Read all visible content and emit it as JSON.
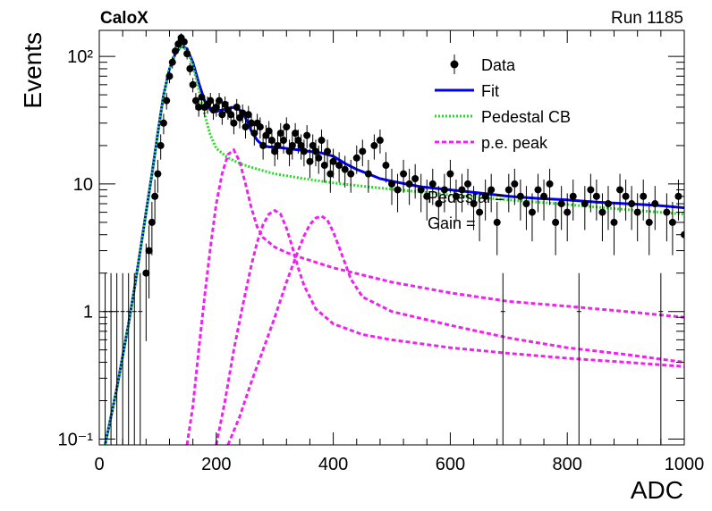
{
  "header": {
    "experiment": "CaloX",
    "run": "Run 1185"
  },
  "chart_data": {
    "type": "scatter",
    "title": "",
    "xlabel": "ADC",
    "ylabel": "Events",
    "xlim": [
      0,
      1000
    ],
    "ylim": [
      0.09,
      160
    ],
    "yscale": "log",
    "x_ticks": [
      0,
      200,
      400,
      600,
      800,
      1000
    ],
    "x_tick_labels": [
      "0",
      "200",
      "400",
      "600",
      "800",
      "1000"
    ],
    "y_ticks": [
      0.1,
      1,
      10,
      100
    ],
    "y_tick_labels": [
      "10⁻¹",
      "1",
      "10",
      "10²"
    ],
    "legend_position": "top-right",
    "legend": [
      {
        "label": "Data",
        "kind": "points",
        "color": "#000000"
      },
      {
        "label": "Fit",
        "kind": "line",
        "color": "#0000ee"
      },
      {
        "label": "Pedestal CB",
        "kind": "dotted-line",
        "color": "#22dd22"
      },
      {
        "label": "p.e. peak",
        "kind": "dashed-line",
        "color": "#ee22ee"
      }
    ],
    "annotations": [
      "Pedestal = ",
      "Gain = "
    ],
    "series": [
      {
        "name": "Data",
        "kind": "points",
        "x": [
          10,
          20,
          30,
          40,
          50,
          60,
          70,
          80,
          85,
          90,
          95,
          100,
          105,
          110,
          115,
          120,
          125,
          130,
          135,
          140,
          145,
          150,
          155,
          160,
          165,
          170,
          175,
          180,
          185,
          190,
          195,
          200,
          205,
          210,
          215,
          220,
          225,
          230,
          235,
          240,
          245,
          250,
          255,
          260,
          265,
          270,
          275,
          280,
          285,
          290,
          295,
          300,
          305,
          310,
          315,
          320,
          325,
          330,
          335,
          340,
          345,
          350,
          355,
          360,
          365,
          370,
          375,
          380,
          385,
          390,
          395,
          400,
          410,
          420,
          430,
          440,
          450,
          460,
          470,
          480,
          490,
          500,
          510,
          520,
          530,
          540,
          550,
          560,
          570,
          580,
          590,
          600,
          610,
          620,
          630,
          640,
          650,
          660,
          670,
          680,
          690,
          700,
          710,
          720,
          730,
          740,
          750,
          760,
          770,
          780,
          790,
          800,
          810,
          820,
          830,
          840,
          850,
          860,
          870,
          880,
          890,
          900,
          910,
          920,
          930,
          940,
          950,
          960,
          970,
          980,
          990,
          1000
        ],
        "y": [
          1,
          1,
          1,
          1,
          1,
          1,
          1,
          2,
          3,
          5,
          8,
          12,
          20,
          30,
          45,
          70,
          90,
          110,
          125,
          140,
          130,
          105,
          80,
          60,
          45,
          40,
          48,
          40,
          42,
          45,
          38,
          40,
          45,
          35,
          42,
          38,
          35,
          30,
          40,
          33,
          36,
          28,
          35,
          30,
          25,
          30,
          28,
          20,
          24,
          26,
          22,
          18,
          20,
          25,
          22,
          28,
          18,
          20,
          25,
          22,
          20,
          18,
          24,
          15,
          20,
          18,
          16,
          22,
          14,
          18,
          12,
          15,
          14,
          13,
          12,
          16,
          18,
          12,
          20,
          22,
          14,
          10,
          9,
          12,
          10,
          11,
          9,
          8,
          10,
          7,
          9,
          12,
          8,
          9,
          10,
          7,
          6,
          8,
          9,
          5,
          1,
          9,
          10,
          8,
          7,
          6,
          9,
          8,
          10,
          5,
          7,
          6,
          8,
          1,
          7,
          9,
          8,
          6,
          7,
          5,
          9,
          8,
          7,
          6,
          8,
          5,
          7,
          1,
          6,
          5,
          8,
          4
        ]
      },
      {
        "name": "Fit",
        "kind": "line",
        "x": [
          10,
          20,
          30,
          40,
          50,
          60,
          70,
          80,
          90,
          100,
          110,
          120,
          130,
          140,
          150,
          160,
          170,
          180,
          190,
          200,
          210,
          220,
          230,
          240,
          250,
          260,
          270,
          280,
          290,
          300,
          320,
          340,
          360,
          380,
          400,
          420,
          440,
          460,
          480,
          500,
          550,
          600,
          650,
          700,
          750,
          800,
          850,
          900,
          950,
          1000
        ],
        "y": [
          0.09,
          0.15,
          0.25,
          0.45,
          0.8,
          1.5,
          3,
          6,
          12,
          25,
          50,
          80,
          105,
          120,
          115,
          90,
          62,
          45,
          38,
          37,
          38,
          39,
          40,
          38,
          33,
          26,
          22,
          20,
          19.5,
          19.5,
          19,
          18.5,
          18,
          17.5,
          16.5,
          14.5,
          13,
          12,
          11,
          10.5,
          9.5,
          9,
          8.5,
          8,
          7.7,
          7.5,
          7.2,
          7,
          6.8,
          6.5
        ]
      },
      {
        "name": "Pedestal CB",
        "kind": "dotted-line",
        "x": [
          10,
          20,
          30,
          40,
          50,
          60,
          70,
          80,
          90,
          100,
          110,
          120,
          130,
          140,
          150,
          160,
          170,
          180,
          190,
          200,
          220,
          240,
          260,
          280,
          300,
          350,
          400,
          450,
          500,
          600,
          700,
          800,
          900,
          1000
        ],
        "y": [
          0.09,
          0.15,
          0.25,
          0.45,
          0.8,
          1.5,
          3,
          6,
          12,
          25,
          50,
          80,
          105,
          120,
          112,
          85,
          55,
          35,
          24,
          19,
          16,
          14.5,
          13.5,
          12.7,
          12,
          11,
          10.2,
          9.6,
          9.1,
          8.2,
          7.5,
          6.9,
          6.3,
          5.8
        ]
      },
      {
        "name": "p.e. peak 1",
        "kind": "dashed-line",
        "x": [
          150,
          160,
          170,
          180,
          190,
          200,
          210,
          220,
          230,
          240,
          250,
          260,
          270,
          280,
          300,
          320,
          350,
          400,
          500,
          600,
          700,
          800,
          900,
          1000
        ],
        "y": [
          0.09,
          0.18,
          0.5,
          1.3,
          3.2,
          7,
          12,
          17,
          18.5,
          15,
          10,
          6.5,
          4.6,
          3.8,
          3.2,
          2.9,
          2.6,
          2.2,
          1.7,
          1.4,
          1.2,
          1.1,
          1.0,
          0.9
        ]
      },
      {
        "name": "p.e. peak 2",
        "kind": "dashed-line",
        "x": [
          200,
          215,
          230,
          245,
          260,
          270,
          280,
          290,
          300,
          310,
          320,
          330,
          340,
          350,
          370,
          400,
          450,
          500,
          600,
          700,
          800,
          900,
          1000
        ],
        "y": [
          0.09,
          0.2,
          0.5,
          1.1,
          2.3,
          3.5,
          4.8,
          5.8,
          6.2,
          5.8,
          4.5,
          3.2,
          2.2,
          1.6,
          1.05,
          0.8,
          0.66,
          0.6,
          0.52,
          0.47,
          0.43,
          0.4,
          0.37
        ]
      },
      {
        "name": "p.e. peak 3",
        "kind": "dashed-line",
        "x": [
          220,
          240,
          260,
          280,
          300,
          320,
          340,
          350,
          360,
          370,
          380,
          390,
          400,
          410,
          420,
          430,
          450,
          500,
          600,
          700,
          800,
          900,
          1000
        ],
        "y": [
          0.09,
          0.15,
          0.28,
          0.5,
          0.9,
          1.7,
          3,
          3.9,
          4.8,
          5.4,
          5.6,
          5.2,
          4.2,
          3.2,
          2.4,
          1.8,
          1.3,
          1.0,
          0.78,
          0.62,
          0.52,
          0.46,
          0.4
        ]
      }
    ]
  }
}
